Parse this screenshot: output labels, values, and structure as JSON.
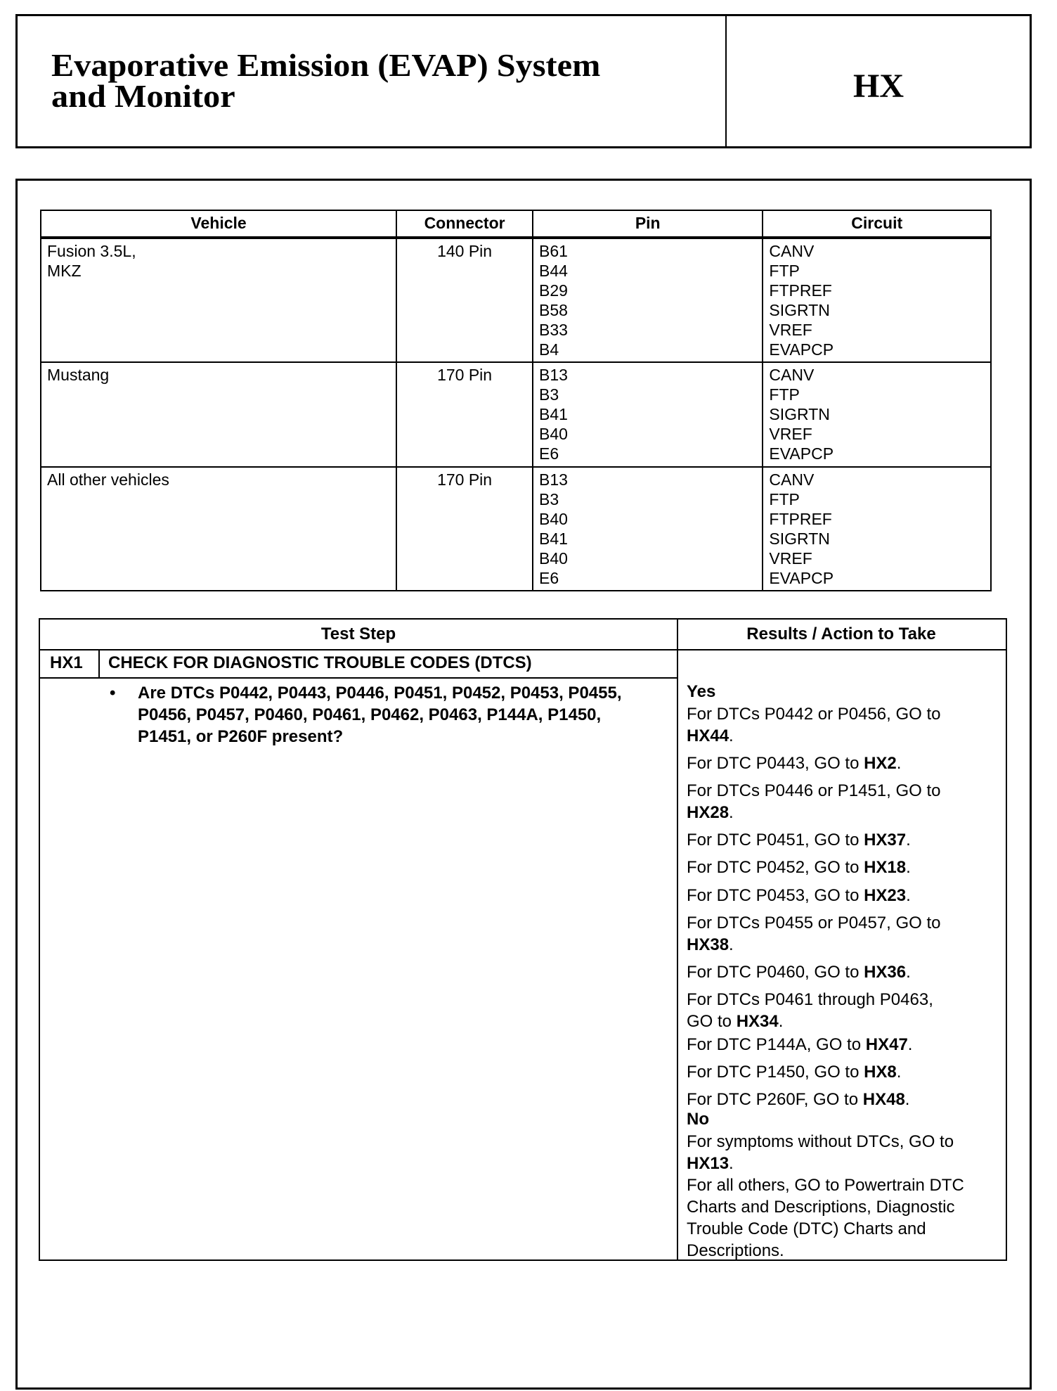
{
  "header": {
    "title_line1": "Evaporative Emission (EVAP) System",
    "title_line2": "and Monitor",
    "code": "HX"
  },
  "pin_table": {
    "headers": [
      "Vehicle",
      "Connector",
      "Pin",
      "Circuit"
    ],
    "rows": [
      {
        "vehicle": [
          "Fusion 3.5L,",
          "MKZ"
        ],
        "connector": "140 Pin",
        "pins": [
          "B61",
          "B44",
          "B29",
          "B58",
          "B33",
          "B4"
        ],
        "circuits": [
          "CANV",
          "FTP",
          "FTPREF",
          "SIGRTN",
          "VREF",
          "EVAPCP"
        ]
      },
      {
        "vehicle": [
          "Mustang"
        ],
        "connector": "170 Pin",
        "pins": [
          "B13",
          "B3",
          "B41",
          "B40",
          "E6"
        ],
        "circuits": [
          "CANV",
          "FTP",
          "SIGRTN",
          "VREF",
          "EVAPCP"
        ]
      },
      {
        "vehicle": [
          "All other vehicles"
        ],
        "connector": "170 Pin",
        "pins": [
          "B13",
          "B3",
          "B40",
          "B41",
          "B40",
          "E6"
        ],
        "circuits": [
          "CANV",
          "FTP",
          "FTPREF",
          "SIGRTN",
          "VREF",
          "EVAPCP"
        ]
      }
    ]
  },
  "test_table": {
    "header_step": "Test Step",
    "header_results": "Results / Action to Take",
    "step_id": "HX1",
    "step_title": "CHECK FOR DIAGNOSTIC TROUBLE CODES (DTCS)",
    "bullet": "•",
    "question": "Are DTCs P0442, P0443, P0446, P0451, P0452, P0453, P0455, P0456, P0457, P0460, P0461, P0462, P0463, P144A, P1450, P1451, or P260F present?",
    "yes_label": "Yes",
    "yes_items": [
      {
        "text": "For DTCs P0442 or P0456, GO to",
        "target": "HX44",
        "end": "."
      },
      {
        "text": "For DTC P0443, GO to",
        "target": "HX2",
        "end": "."
      },
      {
        "text": "For DTCs P0446 or P1451, GO to",
        "target": "HX28",
        "end": "."
      },
      {
        "text": "For DTC P0451, GO to",
        "target": "HX37",
        "end": "."
      },
      {
        "text": "For DTC P0452, GO to",
        "target": "HX18",
        "end": "."
      },
      {
        "text": "For DTC P0453, GO to",
        "target": "HX23",
        "end": "."
      },
      {
        "text": "For DTCs P0455 or P0457, GO to",
        "target": "HX38",
        "end": "."
      },
      {
        "text": "For DTC P0460, GO to",
        "target": "HX36",
        "end": "."
      },
      {
        "text": "For DTCs P0461 through P0463,",
        "text2": "GO to",
        "target": "HX34",
        "end": "."
      },
      {
        "text": "For DTC P144A, GO to",
        "target": "HX47",
        "end": "."
      },
      {
        "text": "For DTC P1450, GO to",
        "target": "HX8",
        "end": "."
      },
      {
        "text": "For DTC P260F, GO to",
        "target": "HX48",
        "end": "."
      }
    ],
    "no_label": "No",
    "no_items": [
      {
        "text": "For symptoms without DTCs, GO to",
        "target": "HX13",
        "end": "."
      },
      {
        "text": "For all others, GO to Powertrain DTC Charts and Descriptions, Diagnostic Trouble Code (DTC) Charts and Descriptions."
      }
    ]
  }
}
